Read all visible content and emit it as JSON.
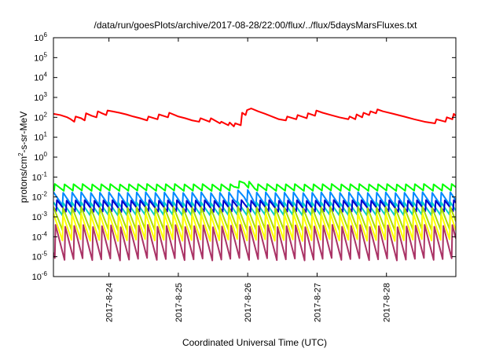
{
  "chart_data": {
    "type": "line",
    "title": "/data/run/goesPlots/archive/2017-08-28/22:00/flux/../flux/5daysMarsFluxes.txt",
    "xlabel": "Coordinated Universal Time (UTC)",
    "ylabel": {
      "prefix": "protons/cm",
      "sup": "2",
      "suffix": "-s-sr-MeV"
    },
    "y_scale": "log",
    "ylim_exponents": [
      -6,
      6
    ],
    "ytick_base": "10",
    "ytick_exponents": [
      "-6",
      "-5",
      "-4",
      "-3",
      "-2",
      "-1",
      "0",
      "1",
      "2",
      "3",
      "4",
      "5",
      "6"
    ],
    "xlim_days": [
      23.2,
      29.0
    ],
    "x_ticks": [
      {
        "day": 24,
        "label": "2017-8-24"
      },
      {
        "day": 25,
        "label": "2017-8-25"
      },
      {
        "day": 26,
        "label": "2017-8-26"
      },
      {
        "day": 27,
        "label": "2017-8-27"
      },
      {
        "day": 28,
        "label": "2017-8-28"
      }
    ],
    "grid": false,
    "series": [
      {
        "color": "#ff0000",
        "points": [
          [
            23.2,
            150
          ],
          [
            23.3,
            130
          ],
          [
            23.4,
            100
          ],
          [
            23.45,
            80
          ],
          [
            23.5,
            60
          ],
          [
            23.52,
            110
          ],
          [
            23.6,
            90
          ],
          [
            23.65,
            70
          ],
          [
            23.67,
            160
          ],
          [
            23.75,
            120
          ],
          [
            23.82,
            100
          ],
          [
            23.84,
            200
          ],
          [
            23.9,
            160
          ],
          [
            23.96,
            130
          ],
          [
            23.98,
            220
          ],
          [
            24.05,
            200
          ],
          [
            24.15,
            170
          ],
          [
            24.25,
            140
          ],
          [
            24.35,
            110
          ],
          [
            24.45,
            90
          ],
          [
            24.55,
            70
          ],
          [
            24.57,
            110
          ],
          [
            24.7,
            80
          ],
          [
            24.72,
            140
          ],
          [
            24.85,
            100
          ],
          [
            24.87,
            170
          ],
          [
            24.95,
            130
          ],
          [
            25.0,
            110
          ],
          [
            25.1,
            90
          ],
          [
            25.2,
            70
          ],
          [
            25.3,
            60
          ],
          [
            25.32,
            90
          ],
          [
            25.45,
            60
          ],
          [
            25.47,
            90
          ],
          [
            25.6,
            50
          ],
          [
            25.62,
            60
          ],
          [
            25.72,
            40
          ],
          [
            25.74,
            55
          ],
          [
            25.8,
            35
          ],
          [
            25.82,
            50
          ],
          [
            25.9,
            40
          ],
          [
            25.92,
            170
          ],
          [
            25.97,
            130
          ],
          [
            25.99,
            230
          ],
          [
            26.05,
            280
          ],
          [
            26.15,
            200
          ],
          [
            26.25,
            150
          ],
          [
            26.35,
            110
          ],
          [
            26.45,
            80
          ],
          [
            26.55,
            70
          ],
          [
            26.57,
            110
          ],
          [
            26.7,
            80
          ],
          [
            26.72,
            130
          ],
          [
            26.85,
            90
          ],
          [
            26.87,
            160
          ],
          [
            26.97,
            120
          ],
          [
            26.99,
            220
          ],
          [
            27.08,
            170
          ],
          [
            27.2,
            130
          ],
          [
            27.32,
            100
          ],
          [
            27.45,
            80
          ],
          [
            27.47,
            110
          ],
          [
            27.55,
            80
          ],
          [
            27.57,
            140
          ],
          [
            27.65,
            100
          ],
          [
            27.67,
            170
          ],
          [
            27.75,
            130
          ],
          [
            27.77,
            200
          ],
          [
            27.85,
            160
          ],
          [
            27.87,
            250
          ],
          [
            27.95,
            200
          ],
          [
            28.1,
            150
          ],
          [
            28.25,
            110
          ],
          [
            28.4,
            80
          ],
          [
            28.55,
            60
          ],
          [
            28.7,
            50
          ],
          [
            28.72,
            80
          ],
          [
            28.85,
            60
          ],
          [
            28.87,
            100
          ],
          [
            28.95,
            80
          ],
          [
            28.97,
            150
          ],
          [
            29.0,
            120
          ]
        ]
      },
      {
        "color": "#00ff00",
        "base": 0.03,
        "amp": 1.5,
        "period": 0.133,
        "phase": 0.02,
        "bumps": [
          [
            25.95,
            1.7,
            0.15
          ]
        ]
      },
      {
        "color": "#0088ff",
        "base": 0.008,
        "amp": 2.2,
        "period": 0.133,
        "phase": 0.0,
        "bumps": [
          [
            25.95,
            1.6,
            0.15
          ]
        ]
      },
      {
        "color": "#00cccc",
        "base": 0.0025,
        "amp": 2.2,
        "period": 0.133,
        "phase": 0.0
      },
      {
        "color": "#0000cc",
        "base": 0.0035,
        "amp": 2.0,
        "period": 0.133,
        "phase": 0.05
      },
      {
        "color": "#aadd00",
        "base": 0.0008,
        "amp": 4.0,
        "period": 0.133,
        "phase": 0.0
      },
      {
        "color": "#ffff00",
        "base": 0.0003,
        "amp": 5.0,
        "period": 0.133,
        "phase": 0.0
      },
      {
        "color": "#aa3366",
        "base": 5e-05,
        "amp": 8.0,
        "period": 0.133,
        "phase": 0.03
      }
    ]
  }
}
